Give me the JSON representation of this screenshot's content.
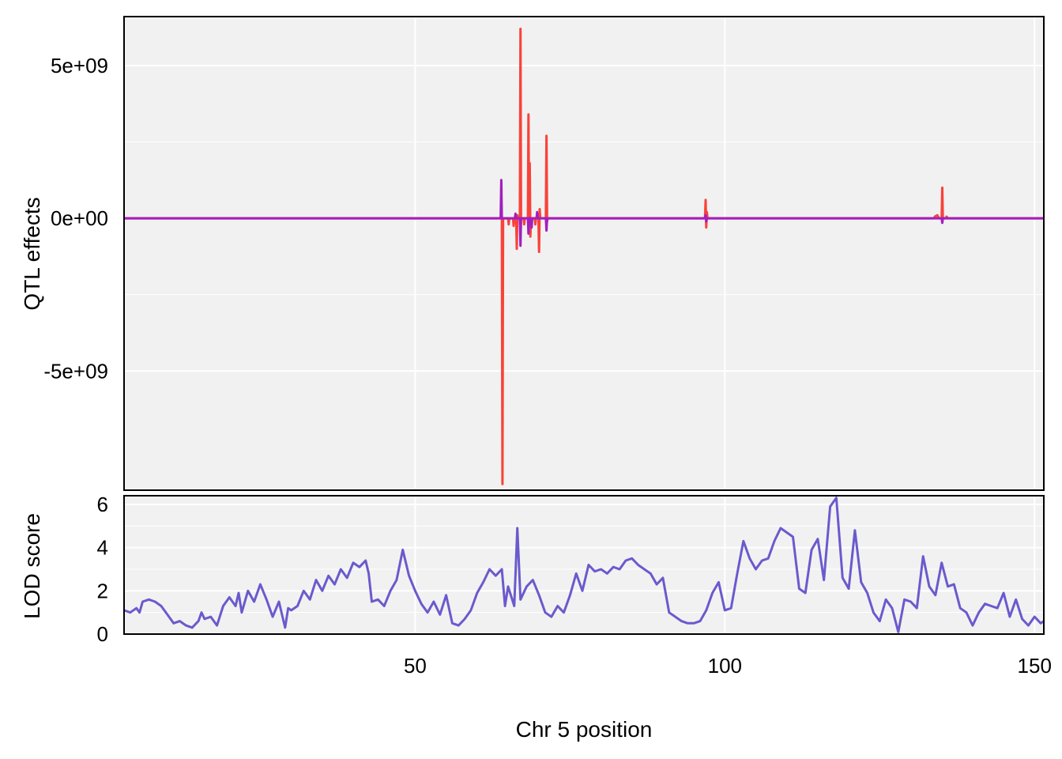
{
  "chart_data": [
    {
      "type": "line",
      "panel": "top",
      "ylabel": "QTL effects",
      "xlabel": "",
      "xlim": [
        3,
        151.5
      ],
      "ylim": [
        -8900000000.0,
        6600000000.0
      ],
      "yticks": [
        {
          "value": 5000000000.0,
          "label": "5e+09"
        },
        {
          "value": 0,
          "label": "0e+00"
        },
        {
          "value": -5000000000.0,
          "label": "-5e+09"
        }
      ],
      "xgrid": [
        50,
        100,
        150
      ],
      "grid": true,
      "background": "#f1f1f1",
      "series": [
        {
          "color": "#f8433a",
          "points": [
            [
              3,
              0
            ],
            [
              64.0,
              0
            ],
            [
              64.1,
              -8700000000.0
            ],
            [
              64.2,
              0
            ],
            [
              65.0,
              0
            ],
            [
              65.1,
              -200000000.0
            ],
            [
              65.2,
              0
            ],
            [
              65.8,
              0
            ],
            [
              65.9,
              -250000000.0
            ],
            [
              66.0,
              0
            ],
            [
              66.3,
              0
            ],
            [
              66.4,
              -1000000000.0
            ],
            [
              66.5,
              100000000.0
            ],
            [
              66.6,
              0
            ],
            [
              66.9,
              0
            ],
            [
              67.0,
              6200000000.0
            ],
            [
              67.1,
              0
            ],
            [
              67.5,
              0
            ],
            [
              67.6,
              -200000000.0
            ],
            [
              67.7,
              0
            ],
            [
              68.2,
              0
            ],
            [
              68.3,
              3400000000.0
            ],
            [
              68.4,
              -300000000.0
            ],
            [
              68.5,
              1800000000.0
            ],
            [
              68.6,
              -600000000.0
            ],
            [
              68.7,
              0
            ],
            [
              69.3,
              0
            ],
            [
              69.4,
              -200000000.0
            ],
            [
              69.5,
              0
            ],
            [
              69.9,
              0
            ],
            [
              70.0,
              -1100000000.0
            ],
            [
              70.1,
              300000000.0
            ],
            [
              70.2,
              0
            ],
            [
              71.1,
              0
            ],
            [
              71.2,
              2700000000.0
            ],
            [
              71.3,
              -100000000.0
            ],
            [
              71.4,
              0
            ],
            [
              96.8,
              0
            ],
            [
              96.9,
              600000000.0
            ],
            [
              97.0,
              -300000000.0
            ],
            [
              97.1,
              200000000.0
            ],
            [
              97.2,
              0
            ],
            [
              133.8,
              0
            ],
            [
              133.9,
              50000000.0
            ],
            [
              134.3,
              100000000.0
            ],
            [
              134.6,
              0
            ],
            [
              135.0,
              0
            ],
            [
              135.1,
              1000000000.0
            ],
            [
              135.2,
              0
            ],
            [
              135.7,
              0
            ],
            [
              135.8,
              50000000.0
            ],
            [
              136.0,
              0
            ],
            [
              151.5,
              0
            ]
          ]
        },
        {
          "color": "#a21ebf",
          "points": [
            [
              3,
              0
            ],
            [
              63.8,
              0
            ],
            [
              63.9,
              1250000000.0
            ],
            [
              64.0,
              0
            ],
            [
              66.1,
              0
            ],
            [
              66.2,
              150000000.0
            ],
            [
              66.3,
              0
            ],
            [
              66.9,
              0
            ],
            [
              67.0,
              -900000000.0
            ],
            [
              67.1,
              0
            ],
            [
              68.2,
              0
            ],
            [
              68.3,
              -500000000.0
            ],
            [
              68.4,
              0
            ],
            [
              68.7,
              0
            ],
            [
              68.8,
              -300000000.0
            ],
            [
              68.9,
              0
            ],
            [
              69.6,
              0
            ],
            [
              69.7,
              200000000.0
            ],
            [
              69.8,
              0
            ],
            [
              71.1,
              0
            ],
            [
              71.2,
              -400000000.0
            ],
            [
              71.3,
              0
            ],
            [
              96.8,
              0
            ],
            [
              96.9,
              100000000.0
            ],
            [
              97.0,
              -100000000.0
            ],
            [
              97.1,
              0
            ],
            [
              135.0,
              0
            ],
            [
              135.1,
              -150000000.0
            ],
            [
              135.2,
              0
            ],
            [
              151.5,
              0
            ]
          ]
        }
      ]
    },
    {
      "type": "line",
      "panel": "bottom",
      "ylabel": "LOD score",
      "xlabel": "Chr 5 position",
      "xlim": [
        3,
        151.5
      ],
      "ylim": [
        0,
        6.4
      ],
      "yticks": [
        {
          "value": 0,
          "label": "0"
        },
        {
          "value": 2,
          "label": "2"
        },
        {
          "value": 4,
          "label": "4"
        },
        {
          "value": 6,
          "label": "6"
        }
      ],
      "xticks": [
        {
          "value": 50,
          "label": "50"
        },
        {
          "value": 100,
          "label": "100"
        },
        {
          "value": 150,
          "label": "150"
        }
      ],
      "grid": true,
      "background": "#f1f1f1",
      "series": [
        {
          "color": "#6a5acd",
          "points": [
            [
              3,
              1.1
            ],
            [
              4,
              1.0
            ],
            [
              5,
              1.2
            ],
            [
              5.5,
              1.0
            ],
            [
              6,
              1.5
            ],
            [
              7,
              1.6
            ],
            [
              8,
              1.5
            ],
            [
              9,
              1.3
            ],
            [
              10,
              0.9
            ],
            [
              11,
              0.5
            ],
            [
              12,
              0.6
            ],
            [
              13,
              0.4
            ],
            [
              14,
              0.3
            ],
            [
              15,
              0.6
            ],
            [
              15.5,
              1.0
            ],
            [
              16,
              0.7
            ],
            [
              17,
              0.8
            ],
            [
              18,
              0.4
            ],
            [
              19,
              1.3
            ],
            [
              20,
              1.7
            ],
            [
              21,
              1.3
            ],
            [
              21.5,
              1.9
            ],
            [
              22,
              1.0
            ],
            [
              23,
              2.0
            ],
            [
              24,
              1.5
            ],
            [
              25,
              2.3
            ],
            [
              26,
              1.6
            ],
            [
              27,
              0.8
            ],
            [
              28,
              1.5
            ],
            [
              29,
              0.3
            ],
            [
              29.5,
              1.2
            ],
            [
              30,
              1.1
            ],
            [
              31,
              1.3
            ],
            [
              32,
              2.0
            ],
            [
              33,
              1.6
            ],
            [
              34,
              2.5
            ],
            [
              35,
              2.0
            ],
            [
              36,
              2.7
            ],
            [
              37,
              2.3
            ],
            [
              38,
              3.0
            ],
            [
              39,
              2.6
            ],
            [
              40,
              3.3
            ],
            [
              41,
              3.1
            ],
            [
              42,
              3.4
            ],
            [
              42.5,
              2.8
            ],
            [
              43,
              1.5
            ],
            [
              44,
              1.6
            ],
            [
              45,
              1.3
            ],
            [
              46,
              2.0
            ],
            [
              47,
              2.5
            ],
            [
              48,
              3.9
            ],
            [
              49,
              2.7
            ],
            [
              50,
              2.0
            ],
            [
              51,
              1.4
            ],
            [
              52,
              1.0
            ],
            [
              53,
              1.5
            ],
            [
              54,
              0.9
            ],
            [
              55,
              1.8
            ],
            [
              56,
              0.5
            ],
            [
              57,
              0.4
            ],
            [
              58,
              0.7
            ],
            [
              59,
              1.1
            ],
            [
              60,
              1.9
            ],
            [
              61,
              2.4
            ],
            [
              62,
              3.0
            ],
            [
              63,
              2.7
            ],
            [
              64,
              3.0
            ],
            [
              64.5,
              1.3
            ],
            [
              65,
              2.2
            ],
            [
              66,
              1.3
            ],
            [
              66.5,
              4.9
            ],
            [
              67,
              1.6
            ],
            [
              68,
              2.2
            ],
            [
              69,
              2.5
            ],
            [
              70,
              1.8
            ],
            [
              71,
              1.0
            ],
            [
              72,
              0.8
            ],
            [
              73,
              1.3
            ],
            [
              74,
              1.0
            ],
            [
              75,
              1.8
            ],
            [
              76,
              2.8
            ],
            [
              77,
              2.0
            ],
            [
              78,
              3.2
            ],
            [
              79,
              2.9
            ],
            [
              80,
              3.0
            ],
            [
              81,
              2.8
            ],
            [
              82,
              3.1
            ],
            [
              83,
              3.0
            ],
            [
              84,
              3.4
            ],
            [
              85,
              3.5
            ],
            [
              86,
              3.2
            ],
            [
              87,
              3.0
            ],
            [
              88,
              2.8
            ],
            [
              89,
              2.3
            ],
            [
              90,
              2.6
            ],
            [
              91,
              1.0
            ],
            [
              92,
              0.8
            ],
            [
              93,
              0.6
            ],
            [
              94,
              0.5
            ],
            [
              95,
              0.5
            ],
            [
              96,
              0.6
            ],
            [
              97,
              1.1
            ],
            [
              98,
              1.9
            ],
            [
              99,
              2.4
            ],
            [
              100,
              1.1
            ],
            [
              101,
              1.2
            ],
            [
              102,
              2.8
            ],
            [
              103,
              4.3
            ],
            [
              104,
              3.5
            ],
            [
              105,
              3.0
            ],
            [
              106,
              3.4
            ],
            [
              107,
              3.5
            ],
            [
              108,
              4.3
            ],
            [
              109,
              4.9
            ],
            [
              110,
              4.7
            ],
            [
              111,
              4.5
            ],
            [
              112,
              2.1
            ],
            [
              113,
              1.9
            ],
            [
              114,
              3.9
            ],
            [
              115,
              4.4
            ],
            [
              116,
              2.5
            ],
            [
              117,
              5.9
            ],
            [
              118,
              6.3
            ],
            [
              119,
              2.6
            ],
            [
              120,
              2.1
            ],
            [
              121,
              4.8
            ],
            [
              122,
              2.4
            ],
            [
              123,
              1.9
            ],
            [
              124,
              1.0
            ],
            [
              125,
              0.6
            ],
            [
              126,
              1.6
            ],
            [
              127,
              1.2
            ],
            [
              128,
              0.1
            ],
            [
              129,
              1.6
            ],
            [
              130,
              1.5
            ],
            [
              131,
              1.2
            ],
            [
              132,
              3.6
            ],
            [
              133,
              2.2
            ],
            [
              134,
              1.8
            ],
            [
              135,
              3.3
            ],
            [
              136,
              2.2
            ],
            [
              137,
              2.3
            ],
            [
              138,
              1.2
            ],
            [
              139,
              1.0
            ],
            [
              140,
              0.4
            ],
            [
              141,
              1.0
            ],
            [
              142,
              1.4
            ],
            [
              143,
              1.3
            ],
            [
              144,
              1.2
            ],
            [
              145,
              1.9
            ],
            [
              146,
              0.8
            ],
            [
              147,
              1.6
            ],
            [
              148,
              0.7
            ],
            [
              149,
              0.4
            ],
            [
              150,
              0.8
            ],
            [
              151,
              0.5
            ],
            [
              151.5,
              0.6
            ]
          ]
        }
      ]
    }
  ]
}
